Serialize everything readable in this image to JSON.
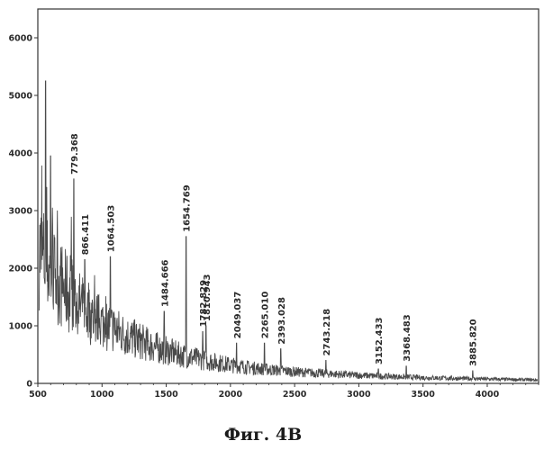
{
  "caption": "Фиг. 4B",
  "chart_data": {
    "type": "line",
    "title": "",
    "xlabel": "",
    "ylabel": "",
    "xlim": [
      500,
      4400
    ],
    "ylim": [
      0,
      6500
    ],
    "xticks": [
      500,
      1000,
      1500,
      2000,
      2500,
      3000,
      3500,
      4000
    ],
    "yticks": [
      0,
      1000,
      2000,
      3000,
      4000,
      5000,
      6000
    ],
    "grid": false,
    "line_color": "#4a4a4a",
    "background_trend": [
      [
        510,
        2300
      ],
      [
        600,
        1950
      ],
      [
        700,
        1650
      ],
      [
        800,
        1400
      ],
      [
        900,
        1200
      ],
      [
        1000,
        1050
      ],
      [
        1200,
        820
      ],
      [
        1400,
        640
      ],
      [
        1600,
        500
      ],
      [
        1800,
        400
      ],
      [
        2000,
        320
      ],
      [
        2200,
        260
      ],
      [
        2500,
        200
      ],
      [
        3000,
        140
      ],
      [
        3500,
        100
      ],
      [
        4000,
        75
      ],
      [
        4400,
        60
      ]
    ],
    "peaks": [
      {
        "x": 779.368,
        "y": 3550,
        "label": "779.368"
      },
      {
        "x": 866.411,
        "y": 2150,
        "label": "866.411"
      },
      {
        "x": 1064.503,
        "y": 2200,
        "label": "1064.503"
      },
      {
        "x": 1484.666,
        "y": 1250,
        "label": "1484.666"
      },
      {
        "x": 1654.769,
        "y": 2550,
        "label": "1654.769"
      },
      {
        "x": 1782.829,
        "y": 900,
        "label": "1782.829"
      },
      {
        "x": 1810.943,
        "y": 1000,
        "label": "1810.943"
      },
      {
        "x": 2049.037,
        "y": 700,
        "label": "2049.037"
      },
      {
        "x": 2265.01,
        "y": 700,
        "label": "2265.010"
      },
      {
        "x": 2393.028,
        "y": 600,
        "label": "2393.028"
      },
      {
        "x": 2743.218,
        "y": 400,
        "label": "2743.218"
      },
      {
        "x": 3152.433,
        "y": 250,
        "label": "3152.433"
      },
      {
        "x": 3368.483,
        "y": 300,
        "label": "3368.483"
      },
      {
        "x": 3885.82,
        "y": 220,
        "label": "3885.820"
      }
    ]
  }
}
